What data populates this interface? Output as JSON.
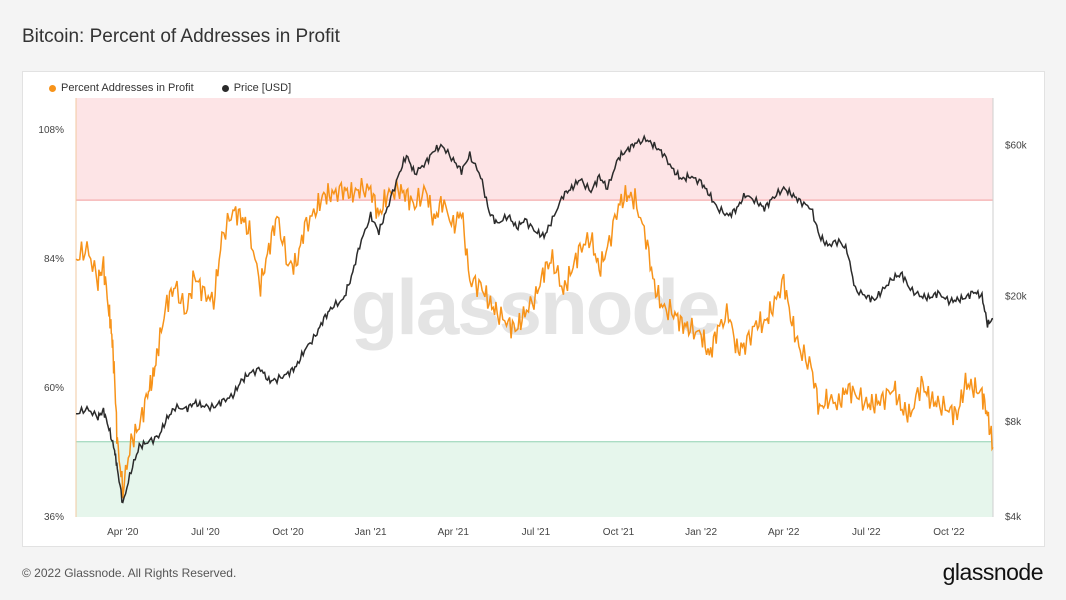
{
  "page": {
    "title": "Bitcoin: Percent of Addresses in Profit",
    "copyright": "© 2022 Glassnode. All Rights Reserved.",
    "logo": "glassnode",
    "watermark": "glassnode"
  },
  "colors": {
    "profit": "#f7931a",
    "price": "#2b2b2b",
    "upper_band": "#fde4e6",
    "upper_line": "#f29b9b",
    "lower_band": "#e6f6ec",
    "lower_line": "#8fd1b0"
  },
  "chart_data": {
    "type": "line",
    "title": "Bitcoin: Percent of Addresses in Profit",
    "legend": [
      "Percent Addresses in Profit",
      "Price [USD]"
    ],
    "legend_position": "top-left",
    "x_ticks": [
      "Apr '20",
      "Jul '20",
      "Oct '20",
      "Jan '21",
      "Apr '21",
      "Jul '21",
      "Oct '21",
      "Jan '22",
      "Apr '22",
      "Jul '22",
      "Oct '22"
    ],
    "x_range": [
      0,
      33.3
    ],
    "y_left": {
      "ticks": [
        "36%",
        "60%",
        "84%",
        "108%"
      ],
      "values": [
        36,
        60,
        84,
        108
      ],
      "range": [
        36,
        114
      ]
    },
    "y_right": {
      "scale": "log",
      "ticks": [
        "$4k",
        "$8k",
        "$20k",
        "$60k"
      ],
      "values": [
        4000,
        8000,
        20000,
        60000
      ],
      "range": [
        4000,
        85000
      ]
    },
    "bands": {
      "upper_threshold": 95,
      "lower_threshold": 50
    },
    "series": [
      {
        "name": "Percent Addresses in Profit",
        "axis": "left",
        "x": [
          0,
          0.4,
          0.8,
          1.0,
          1.2,
          1.3,
          1.4,
          1.5,
          1.7,
          2.0,
          2.3,
          2.6,
          2.8,
          3.0,
          3.3,
          3.6,
          4.0,
          4.3,
          4.6,
          5.0,
          5.3,
          5.7,
          6.0,
          6.3,
          6.7,
          7.0,
          7.3,
          7.7,
          8.0,
          8.3,
          8.7,
          9.0,
          9.3,
          9.7,
          10.0,
          10.3,
          10.7,
          11.0,
          11.3,
          11.7,
          12.0,
          12.3,
          12.7,
          13.0,
          13.3,
          13.7,
          14.0,
          14.3,
          14.7,
          15.0,
          15.3,
          15.7,
          16.0,
          16.3,
          16.7,
          17.0,
          17.3,
          17.7,
          18.0,
          18.3,
          18.7,
          19.0,
          19.3,
          19.7,
          20.0,
          20.3,
          20.7,
          21.0,
          21.3,
          21.7,
          22.0,
          22.3,
          22.7,
          23.0,
          23.3,
          23.7,
          24.0,
          24.3,
          24.7,
          25.0,
          25.3,
          25.7,
          26.0,
          26.3,
          26.7,
          27.0,
          27.3,
          27.7,
          28.0,
          28.3,
          28.7,
          29.0,
          29.3,
          29.7,
          30.0,
          30.3,
          30.7,
          31.0,
          31.3,
          31.7,
          32.0,
          32.3,
          32.6,
          32.9,
          33.1,
          33.3
        ],
        "values": [
          84,
          86,
          80,
          83,
          74,
          70,
          62,
          50,
          41,
          50,
          53,
          59,
          62,
          68,
          76,
          79,
          74,
          81,
          78,
          76,
          88,
          93,
          92,
          89,
          79,
          86,
          92,
          83,
          83,
          90,
          93,
          96,
          96,
          97,
          96,
          97,
          97,
          92,
          96,
          97,
          96,
          94,
          97,
          91,
          95,
          90,
          93,
          80,
          79,
          76,
          74,
          72,
          71,
          74,
          77,
          82,
          84,
          78,
          82,
          86,
          88,
          82,
          86,
          94,
          96,
          95,
          88,
          79,
          75,
          74,
          72,
          71,
          70,
          66,
          71,
          74,
          67,
          68,
          72,
          72,
          75,
          80,
          72,
          67,
          64,
          56,
          58,
          57,
          60,
          59,
          57,
          57,
          58,
          60,
          56,
          55,
          61,
          58,
          57,
          56,
          55,
          61,
          60,
          59,
          55,
          49
        ],
        "color": "#f7931a"
      },
      {
        "name": "Price [USD]",
        "axis": "right",
        "x": [
          0,
          0.4,
          0.8,
          1.0,
          1.2,
          1.4,
          1.5,
          1.7,
          2.0,
          2.3,
          2.6,
          3.0,
          3.3,
          3.6,
          4.0,
          4.3,
          4.6,
          5.0,
          5.3,
          5.7,
          6.0,
          6.3,
          6.7,
          7.0,
          7.3,
          7.7,
          8.0,
          8.3,
          8.7,
          9.0,
          9.3,
          9.7,
          10.0,
          10.3,
          10.7,
          11.0,
          11.3,
          11.7,
          12.0,
          12.3,
          12.7,
          13.0,
          13.3,
          13.7,
          14.0,
          14.3,
          14.7,
          15.0,
          15.3,
          15.7,
          16.0,
          16.3,
          16.7,
          17.0,
          17.3,
          17.7,
          18.0,
          18.3,
          18.7,
          19.0,
          19.3,
          19.7,
          20.0,
          20.3,
          20.7,
          21.0,
          21.3,
          21.7,
          22.0,
          22.3,
          22.7,
          23.0,
          23.3,
          23.7,
          24.0,
          24.3,
          24.7,
          25.0,
          25.3,
          25.7,
          26.0,
          26.3,
          26.7,
          27.0,
          27.3,
          27.7,
          28.0,
          28.3,
          28.7,
          29.0,
          29.3,
          29.7,
          30.0,
          30.3,
          30.7,
          31.0,
          31.3,
          31.7,
          32.0,
          32.3,
          32.6,
          32.9,
          33.1,
          33.3
        ],
        "values": [
          8500,
          8800,
          8300,
          8700,
          7600,
          6500,
          5700,
          4400,
          5600,
          6700,
          6900,
          7200,
          8200,
          8900,
          8800,
          9200,
          9000,
          8900,
          9300,
          9700,
          10800,
          11400,
          11800,
          10800,
          10900,
          11400,
          12000,
          13500,
          15000,
          17000,
          18500,
          19500,
          23000,
          29000,
          36000,
          32000,
          38000,
          48000,
          56000,
          49000,
          53000,
          58000,
          60000,
          54000,
          50000,
          56000,
          48000,
          37000,
          34000,
          36000,
          33000,
          35000,
          32000,
          31000,
          35000,
          42000,
          44000,
          47000,
          43000,
          48000,
          44000,
          55000,
          58000,
          61000,
          63000,
          60000,
          57000,
          50000,
          47000,
          48000,
          46000,
          42000,
          38000,
          36000,
          38000,
          42000,
          40000,
          38000,
          41000,
          44000,
          42000,
          40000,
          38000,
          31000,
          29000,
          30000,
          28000,
          21000,
          20000,
          19500,
          21000,
          23000,
          23500,
          21000,
          20000,
          19800,
          20500,
          19300,
          19500,
          19800,
          20700,
          20000,
          16300,
          17000
        ],
        "color": "#2b2b2b"
      }
    ]
  }
}
